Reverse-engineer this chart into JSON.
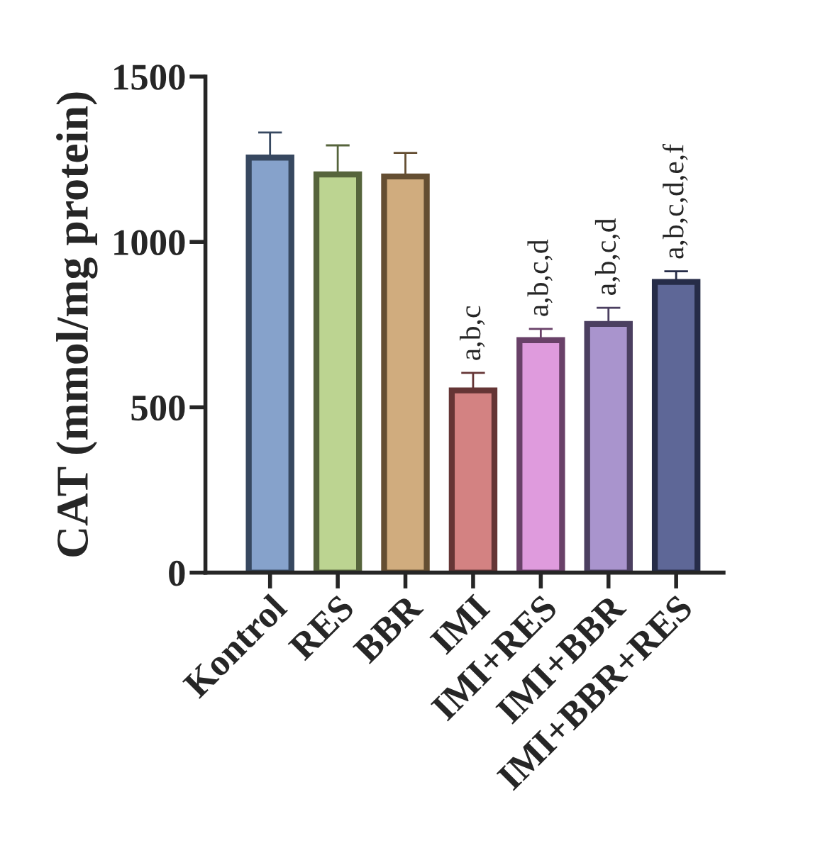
{
  "chart_data": {
    "type": "bar",
    "ylabel": "CAT (mmol/mg protein)",
    "categories": [
      "Kontrol",
      "RES",
      "BBR",
      "IMI",
      "IMI+RES",
      "IMI+BBR",
      "IMI+BBR+RES"
    ],
    "values": [
      1255,
      1204,
      1198,
      551,
      703,
      752,
      879
    ],
    "errors": [
      76,
      88,
      71,
      53,
      34,
      49,
      32
    ],
    "colors": [
      "#7ba0d6",
      "#bfdf86",
      "#deae70",
      "#e07575",
      "#ea90e8",
      "#a78bd6",
      "#5561a0"
    ],
    "ylim": [
      0,
      1500
    ],
    "yticks": [
      0,
      500,
      1000,
      1500
    ],
    "grid": false,
    "legend": false,
    "annotations": [
      {
        "text": "a,b,c",
        "x": "IMI",
        "y": 604
      },
      {
        "text": "a,b,c,d",
        "x": "IMI+RES",
        "y": 737
      },
      {
        "text": "a,b,c,d",
        "x": "IMI+BBR",
        "y": 801
      },
      {
        "text": "a,b,c,d,e,f",
        "x": "IMI+BBR+RES",
        "y": 911
      }
    ]
  }
}
